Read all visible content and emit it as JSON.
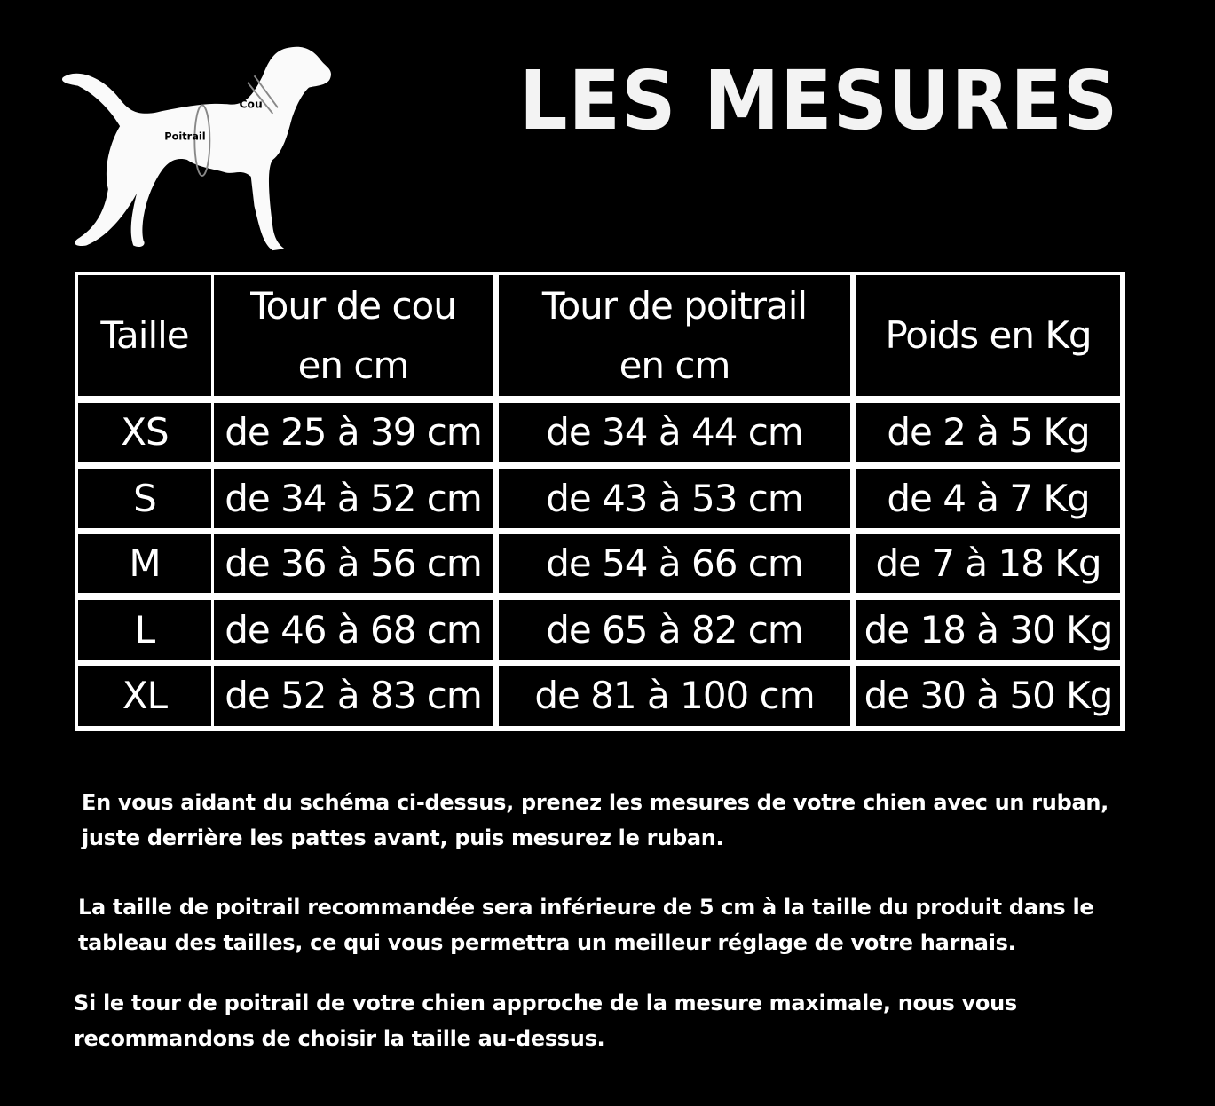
{
  "title": "LES MESURES",
  "diagram": {
    "label_neck": "Cou",
    "label_chest": "Poitrail"
  },
  "table": {
    "headers": [
      "Taille",
      "Tour de cou en cm",
      "Tour de poitrail en cm",
      "Poids en Kg"
    ],
    "rows": [
      [
        "XS",
        "de 25 à 39 cm",
        "de 34 à 44 cm",
        "de 2 à 5 Kg"
      ],
      [
        "S",
        "de 34 à 52 cm",
        "de 43 à 53 cm",
        "de 4 à 7 Kg"
      ],
      [
        "M",
        "de 36 à 56 cm",
        "de 54 à 66 cm",
        "de 7 à 18 Kg"
      ],
      [
        "L",
        "de 46 à 68 cm",
        "de 65 à 82 cm",
        "de 18 à 30 Kg"
      ],
      [
        "XL",
        "de 52 à 83 cm",
        "de 81 à 100 cm",
        "de 30 à 50 Kg"
      ]
    ]
  },
  "paragraphs": [
    "En vous aidant du schéma ci-dessus, prenez les mesures de votre chien avec un ruban, juste derrière les pattes avant, puis mesurez le ruban.",
    "La taille de poitrail recommandée sera inférieure de 5 cm à la taille du produit dans le tableau des tailles, ce qui vous permettra un meilleur réglage de votre harnais.",
    "Si le tour de poitrail de votre chien approche de la mesure maximale, nous vous recommandons de choisir la taille au-dessus."
  ]
}
